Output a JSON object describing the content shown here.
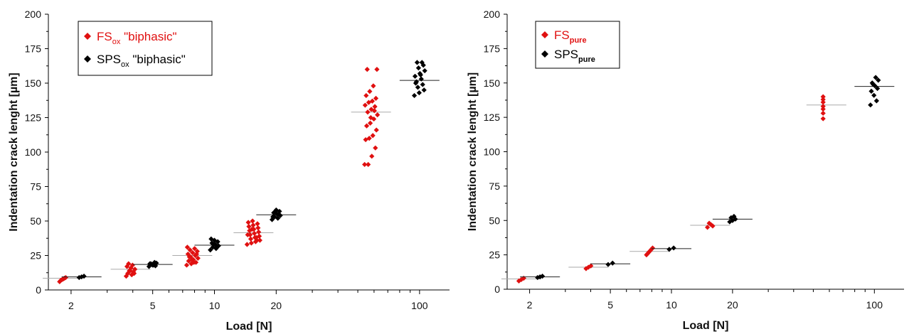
{
  "chart_data": [
    {
      "type": "scatter",
      "xscale": "log",
      "xlabel": "Load [N]",
      "ylabel": "Indentation crack lenght [µm]",
      "xlim": [
        1.55,
        140
      ],
      "ylim": [
        0,
        200
      ],
      "x_ticks": [
        2,
        5,
        10,
        20,
        100
      ],
      "y_ticks": [
        0,
        25,
        50,
        75,
        100,
        125,
        150,
        175,
        200
      ],
      "legend_position": "top-left",
      "colors": {
        "red": "#e01010",
        "black": "#000000"
      },
      "series": [
        {
          "name_main": "FS",
          "name_sub": "ox",
          "name_suffix": " \"biphasic\"",
          "color": "#e01010",
          "marker": "diamond",
          "groups": [
            {
              "x": 1.82,
              "mean": 8.5,
              "values": [
                6,
                7,
                7.5,
                8,
                8.5,
                9
              ]
            },
            {
              "x": 3.9,
              "mean": 15,
              "values": [
                10,
                11,
                12,
                13,
                14,
                15,
                16,
                17,
                18,
                19,
                12,
                14
              ]
            },
            {
              "x": 7.8,
              "mean": 25,
              "values": [
                18,
                19,
                20,
                21,
                22,
                23,
                24,
                25,
                26,
                27,
                28,
                29,
                30,
                31,
                22,
                26,
                24,
                20
              ]
            },
            {
              "x": 15.5,
              "mean": 41.5,
              "values": [
                33,
                34,
                35,
                36,
                37,
                38,
                39,
                40,
                41,
                42,
                43,
                44,
                45,
                46,
                47,
                48,
                49,
                50,
                36,
                40,
                44,
                38
              ]
            },
            {
              "x": 58,
              "mean": 129,
              "values": [
                91,
                91,
                97,
                103,
                109,
                110,
                112,
                116,
                119,
                121,
                124,
                127,
                129,
                131,
                133,
                134,
                136,
                137,
                139,
                141,
                144,
                148,
                160,
                160,
                125,
                130
              ]
            }
          ]
        },
        {
          "name_main": "SPS",
          "name_sub": "ox",
          "name_suffix": " \"biphasic\"",
          "color": "#000000",
          "marker": "diamond",
          "groups": [
            {
              "x": 2.25,
              "mean": 9.5,
              "values": [
                9,
                9.5,
                10
              ]
            },
            {
              "x": 5.0,
              "mean": 18.5,
              "values": [
                17,
                17.5,
                18,
                18.5,
                19,
                19.5,
                20,
                18,
                19
              ]
            },
            {
              "x": 10.0,
              "mean": 32.5,
              "values": [
                29,
                30,
                31,
                32,
                33,
                34,
                35,
                36,
                37,
                31,
                33
              ]
            },
            {
              "x": 20.0,
              "mean": 54.5,
              "values": [
                51,
                52,
                53,
                54,
                55,
                56,
                57,
                58,
                53,
                55,
                57
              ]
            },
            {
              "x": 100,
              "mean": 152,
              "values": [
                141,
                143,
                145,
                147,
                149,
                151,
                153,
                155,
                157,
                159,
                161,
                163,
                165,
                165,
                150,
                156
              ]
            }
          ]
        }
      ]
    },
    {
      "type": "scatter",
      "xscale": "log",
      "xlabel": "Load [N]",
      "ylabel": "Indentation crack lenght [µm]",
      "xlim": [
        1.55,
        140
      ],
      "ylim": [
        0,
        200
      ],
      "x_ticks": [
        2,
        5,
        10,
        20,
        100
      ],
      "y_ticks": [
        0,
        25,
        50,
        75,
        100,
        125,
        150,
        175,
        200
      ],
      "legend_position": "top-left",
      "colors": {
        "red": "#e01010",
        "black": "#000000"
      },
      "series": [
        {
          "name_main": "FS",
          "name_sub": "pure",
          "name_suffix": "",
          "color": "#e01010",
          "marker": "diamond",
          "groups": [
            {
              "x": 1.82,
              "mean": 7.5,
              "values": [
                6,
                7,
                8
              ]
            },
            {
              "x": 3.9,
              "mean": 16,
              "values": [
                15,
                16,
                17
              ]
            },
            {
              "x": 7.8,
              "mean": 27.5,
              "values": [
                25,
                26,
                27,
                28,
                29,
                30
              ]
            },
            {
              "x": 15.5,
              "mean": 46.5,
              "values": [
                45,
                46,
                47,
                48
              ]
            },
            {
              "x": 58,
              "mean": 134,
              "values": [
                124,
                128,
                131,
                133,
                136,
                138,
                140
              ]
            }
          ]
        },
        {
          "name_main": "SPS",
          "name_sub": "pure",
          "name_suffix": "",
          "color": "#000000",
          "marker": "diamond",
          "groups": [
            {
              "x": 2.25,
              "mean": 9,
              "values": [
                8.5,
                9,
                9.5
              ]
            },
            {
              "x": 5.0,
              "mean": 18.5,
              "values": [
                18,
                19
              ]
            },
            {
              "x": 10.0,
              "mean": 29.5,
              "values": [
                29,
                30
              ]
            },
            {
              "x": 20.0,
              "mean": 51,
              "values": [
                49,
                50,
                51,
                52,
                53
              ]
            },
            {
              "x": 100,
              "mean": 147.5,
              "values": [
                134,
                137,
                141,
                144,
                146,
                148,
                150,
                152,
                154,
                149
              ]
            }
          ]
        }
      ]
    }
  ]
}
